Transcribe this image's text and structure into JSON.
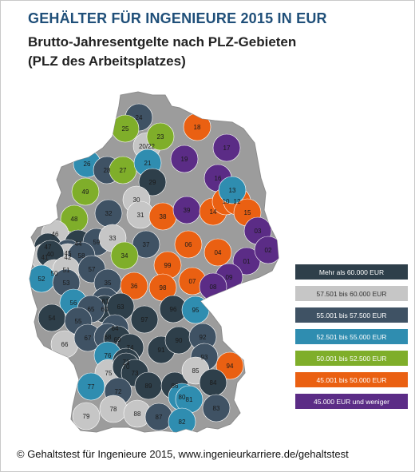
{
  "title": "GEHÄLTER FÜR INGENIEURE 2015 IN EUR",
  "subtitle_line1": "Brutto-Jahresentgelte nach PLZ-Gebieten",
  "subtitle_line2": "(PLZ des Arbeitsplatzes)",
  "legend": [
    {
      "label": "Mehr als 60.000  EUR",
      "color": "#2e3f4a",
      "light": false
    },
    {
      "label": "57.501   bis 60.000  EUR",
      "color": "#c6c6c6",
      "light": true
    },
    {
      "label": "55.001   bis 57.500  EUR",
      "color": "#3f5264",
      "light": false
    },
    {
      "label": "52.501   bis 55.000  EUR",
      "color": "#2f8db0",
      "light": false
    },
    {
      "label": "50.001   bis 52.500  EUR",
      "color": "#7fae2a",
      "light": false
    },
    {
      "label": "45.001   bis 50.000  EUR",
      "color": "#ea6012",
      "light": false
    },
    {
      "label": "45.000  EUR und weniger",
      "color": "#5b2c86",
      "light": false
    }
  ],
  "regions": [
    {
      "code": "24",
      "tier": 2
    },
    {
      "code": "25",
      "tier": 4
    },
    {
      "code": "20/22",
      "tier": 1
    },
    {
      "code": "23",
      "tier": 4
    },
    {
      "code": "18",
      "tier": 5
    },
    {
      "code": "17",
      "tier": 6
    },
    {
      "code": "19",
      "tier": 6
    },
    {
      "code": "26",
      "tier": 3
    },
    {
      "code": "28",
      "tier": 2
    },
    {
      "code": "27",
      "tier": 4
    },
    {
      "code": "21",
      "tier": 3
    },
    {
      "code": "16",
      "tier": 6
    },
    {
      "code": "29",
      "tier": 0
    },
    {
      "code": "49",
      "tier": 4
    },
    {
      "code": "30",
      "tier": 1
    },
    {
      "code": "31",
      "tier": 1
    },
    {
      "code": "38",
      "tier": 5
    },
    {
      "code": "39",
      "tier": 6
    },
    {
      "code": "14",
      "tier": 5
    },
    {
      "code": "10",
      "tier": 5
    },
    {
      "code": "12",
      "tier": 5
    },
    {
      "code": "13",
      "tier": 3
    },
    {
      "code": "15",
      "tier": 5
    },
    {
      "code": "48",
      "tier": 4
    },
    {
      "code": "32",
      "tier": 2
    },
    {
      "code": "46",
      "tier": 1
    },
    {
      "code": "47",
      "tier": 0
    },
    {
      "code": "44",
      "tier": 0
    },
    {
      "code": "45",
      "tier": 2
    },
    {
      "code": "59",
      "tier": 2
    },
    {
      "code": "33",
      "tier": 1
    },
    {
      "code": "37",
      "tier": 2
    },
    {
      "code": "06",
      "tier": 5
    },
    {
      "code": "03",
      "tier": 6
    },
    {
      "code": "41",
      "tier": 1
    },
    {
      "code": "42",
      "tier": 1
    },
    {
      "code": "58",
      "tier": 2
    },
    {
      "code": "40",
      "tier": 0
    },
    {
      "code": "34",
      "tier": 4
    },
    {
      "code": "99",
      "tier": 5
    },
    {
      "code": "04",
      "tier": 5
    },
    {
      "code": "01",
      "tier": 6
    },
    {
      "code": "02",
      "tier": 6
    },
    {
      "code": "50",
      "tier": 1
    },
    {
      "code": "51",
      "tier": 1
    },
    {
      "code": "57",
      "tier": 2
    },
    {
      "code": "52",
      "tier": 3
    },
    {
      "code": "53",
      "tier": 2
    },
    {
      "code": "35",
      "tier": 2
    },
    {
      "code": "36",
      "tier": 5
    },
    {
      "code": "98",
      "tier": 5
    },
    {
      "code": "07",
      "tier": 5
    },
    {
      "code": "09",
      "tier": 6
    },
    {
      "code": "08",
      "tier": 6
    },
    {
      "code": "56",
      "tier": 3
    },
    {
      "code": "61",
      "tier": 2
    },
    {
      "code": "60",
      "tier": 0
    },
    {
      "code": "63",
      "tier": 0
    },
    {
      "code": "65",
      "tier": 2
    },
    {
      "code": "97",
      "tier": 0
    },
    {
      "code": "96",
      "tier": 0
    },
    {
      "code": "95",
      "tier": 3
    },
    {
      "code": "54",
      "tier": 0
    },
    {
      "code": "55",
      "tier": 2
    },
    {
      "code": "64",
      "tier": 2
    },
    {
      "code": "66",
      "tier": 1
    },
    {
      "code": "67",
      "tier": 2
    },
    {
      "code": "68",
      "tier": 2
    },
    {
      "code": "69",
      "tier": 0
    },
    {
      "code": "74",
      "tier": 0
    },
    {
      "code": "91",
      "tier": 0
    },
    {
      "code": "90",
      "tier": 0
    },
    {
      "code": "92",
      "tier": 2
    },
    {
      "code": "76",
      "tier": 3
    },
    {
      "code": "75",
      "tier": 1
    },
    {
      "code": "71",
      "tier": 0
    },
    {
      "code": "70",
      "tier": 0
    },
    {
      "code": "73",
      "tier": 0
    },
    {
      "code": "93",
      "tier": 2
    },
    {
      "code": "94",
      "tier": 5
    },
    {
      "code": "77",
      "tier": 3
    },
    {
      "code": "72",
      "tier": 2
    },
    {
      "code": "89",
      "tier": 0
    },
    {
      "code": "86",
      "tier": 0
    },
    {
      "code": "85",
      "tier": 1
    },
    {
      "code": "84",
      "tier": 0
    },
    {
      "code": "80",
      "tier": 3
    },
    {
      "code": "81",
      "tier": 3
    },
    {
      "code": "79",
      "tier": 1
    },
    {
      "code": "78",
      "tier": 1
    },
    {
      "code": "88",
      "tier": 1
    },
    {
      "code": "87",
      "tier": 2
    },
    {
      "code": "82",
      "tier": 3
    },
    {
      "code": "83",
      "tier": 2
    }
  ],
  "footer": "© Gehaltstest für Ingenieure 2015, www.ingenieurkarriere.de/gehaltstest"
}
